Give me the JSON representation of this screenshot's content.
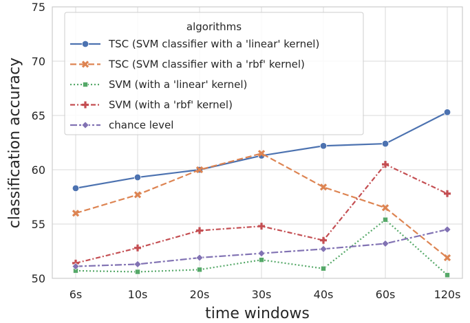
{
  "chart_data": {
    "type": "line",
    "categories": [
      "6s",
      "10s",
      "20s",
      "30s",
      "40s",
      "60s",
      "120s"
    ],
    "xlabel": "time windows",
    "ylabel": "classification accuracy",
    "ylim": [
      50,
      75
    ],
    "yticks": [
      50,
      55,
      60,
      65,
      70,
      75
    ],
    "grid": true,
    "legend_title": "algorithms",
    "legend_position": "top-left",
    "series": [
      {
        "name": "TSC (SVM classifier with a 'linear' kernel)",
        "values": [
          58.3,
          59.3,
          60.0,
          61.3,
          62.2,
          62.4,
          65.3
        ],
        "color": "#4c72b0",
        "dash": "solid",
        "marker": "circle"
      },
      {
        "name": "TSC (SVM classifier with a 'rbf' kernel)",
        "values": [
          56.0,
          57.7,
          60.0,
          61.5,
          58.4,
          56.5,
          51.9
        ],
        "color": "#dd8452",
        "dash": "dashed",
        "marker": "x"
      },
      {
        "name": "SVM (with a 'linear' kernel)",
        "values": [
          50.7,
          50.6,
          50.8,
          51.7,
          50.9,
          55.4,
          50.3
        ],
        "color": "#55a868",
        "dash": "dotted",
        "marker": "square"
      },
      {
        "name": "SVM (with a 'rbf' kernel)",
        "values": [
          51.4,
          52.8,
          54.4,
          54.8,
          53.5,
          60.5,
          57.8
        ],
        "color": "#c44e52",
        "dash": "dashdot",
        "marker": "plus"
      },
      {
        "name": "chance level",
        "values": [
          51.1,
          51.3,
          51.9,
          52.3,
          52.7,
          53.2,
          54.5
        ],
        "color": "#8172b3",
        "dash": "dashdot2",
        "marker": "diamond"
      }
    ]
  }
}
